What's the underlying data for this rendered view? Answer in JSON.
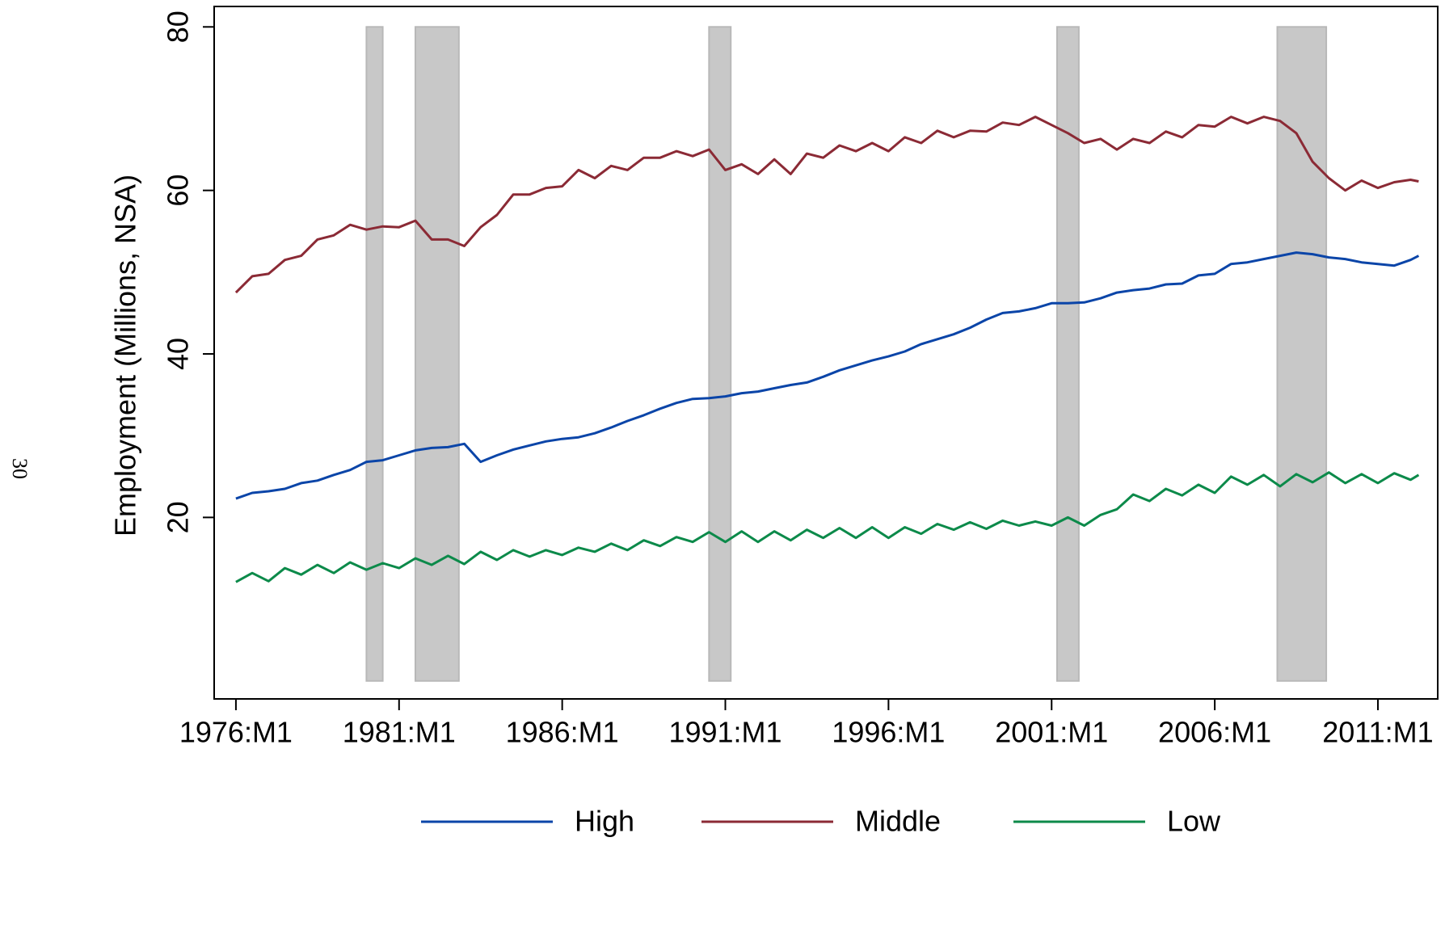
{
  "page_number": "30",
  "chart_data": {
    "type": "line",
    "y_label": "Employment (Millions, NSA)",
    "x": [
      "1976:M1",
      "1976:M7",
      "1977:M1",
      "1977:M7",
      "1978:M1",
      "1978:M7",
      "1979:M1",
      "1979:M7",
      "1980:M1",
      "1980:M7",
      "1981:M1",
      "1981:M7",
      "1982:M1",
      "1982:M7",
      "1983:M1",
      "1983:M7",
      "1984:M1",
      "1984:M7",
      "1985:M1",
      "1985:M7",
      "1986:M1",
      "1986:M7",
      "1987:M1",
      "1987:M7",
      "1988:M1",
      "1988:M7",
      "1989:M1",
      "1989:M7",
      "1990:M1",
      "1990:M7",
      "1991:M1",
      "1991:M7",
      "1992:M1",
      "1992:M7",
      "1993:M1",
      "1993:M7",
      "1994:M1",
      "1994:M7",
      "1995:M1",
      "1995:M7",
      "1996:M1",
      "1996:M7",
      "1997:M1",
      "1997:M7",
      "1998:M1",
      "1998:M7",
      "1999:M1",
      "1999:M7",
      "2000:M1",
      "2000:M7",
      "2001:M1",
      "2001:M7",
      "2002:M1",
      "2002:M7",
      "2003:M1",
      "2003:M7",
      "2004:M1",
      "2004:M7",
      "2005:M1",
      "2005:M7",
      "2006:M1",
      "2006:M7",
      "2007:M1",
      "2007:M7",
      "2008:M1",
      "2008:M7",
      "2009:M1",
      "2009:M7",
      "2010:M1",
      "2010:M7",
      "2011:M1",
      "2011:M7",
      "2012:M1",
      "2012:M4"
    ],
    "series": [
      {
        "name": "High",
        "color": "#0b45a8",
        "values": [
          22.3,
          23.0,
          23.2,
          23.5,
          24.2,
          24.5,
          25.2,
          25.8,
          26.8,
          27.0,
          27.6,
          28.2,
          28.5,
          28.6,
          29.0,
          26.8,
          27.6,
          28.3,
          28.8,
          29.3,
          29.6,
          29.8,
          30.3,
          31.0,
          31.8,
          32.5,
          33.3,
          34.0,
          34.5,
          34.6,
          34.8,
          35.2,
          35.4,
          35.8,
          36.2,
          36.5,
          37.2,
          38.0,
          38.6,
          39.2,
          39.7,
          40.3,
          41.2,
          41.8,
          42.4,
          43.2,
          44.2,
          45.0,
          45.2,
          45.6,
          46.2,
          46.2,
          46.3,
          46.8,
          47.5,
          47.8,
          48.0,
          48.5,
          48.6,
          49.6,
          49.8,
          51.0,
          51.2,
          51.6,
          52.0,
          52.4,
          52.2,
          51.8,
          51.6,
          51.2,
          51.0,
          50.8,
          51.5,
          52.0
        ]
      },
      {
        "name": "Middle",
        "color": "#8b2a35",
        "values": [
          47.5,
          49.5,
          49.8,
          51.5,
          52.0,
          54.0,
          54.5,
          55.8,
          55.2,
          55.6,
          55.5,
          56.3,
          54.0,
          54.0,
          53.2,
          55.5,
          57.0,
          59.5,
          59.5,
          60.3,
          60.5,
          62.5,
          61.5,
          63.0,
          62.5,
          64.0,
          64.0,
          64.8,
          64.2,
          65.0,
          62.5,
          63.2,
          62.0,
          63.8,
          62.0,
          64.5,
          64.0,
          65.5,
          64.8,
          65.8,
          64.8,
          66.5,
          65.8,
          67.3,
          66.5,
          67.3,
          67.2,
          68.3,
          68.0,
          69.0,
          68.0,
          67.0,
          65.8,
          66.3,
          65.0,
          66.3,
          65.8,
          67.2,
          66.5,
          68.0,
          67.8,
          69.0,
          68.2,
          69.0,
          68.5,
          67.0,
          63.5,
          61.5,
          60.0,
          61.2,
          60.3,
          61.0,
          61.3,
          61.1
        ]
      },
      {
        "name": "Low",
        "color": "#0c8a4a",
        "values": [
          12.1,
          13.2,
          12.2,
          13.8,
          13.0,
          14.2,
          13.2,
          14.5,
          13.6,
          14.4,
          13.8,
          15.0,
          14.2,
          15.3,
          14.3,
          15.8,
          14.8,
          16.0,
          15.2,
          16.0,
          15.4,
          16.3,
          15.8,
          16.8,
          16.0,
          17.2,
          16.5,
          17.6,
          17.0,
          18.2,
          17.0,
          18.3,
          17.0,
          18.3,
          17.2,
          18.5,
          17.5,
          18.7,
          17.5,
          18.8,
          17.5,
          18.8,
          18.0,
          19.2,
          18.5,
          19.4,
          18.6,
          19.6,
          19.0,
          19.5,
          19.0,
          20.0,
          19.0,
          20.3,
          21.0,
          22.8,
          22.0,
          23.5,
          22.7,
          24.0,
          23.0,
          25.0,
          24.0,
          25.2,
          23.8,
          25.3,
          24.3,
          25.5,
          24.2,
          25.3,
          24.2,
          25.4,
          24.6,
          25.2
        ]
      }
    ],
    "shaded_periods": [
      {
        "start": "1980:M1",
        "end": "1980:M7"
      },
      {
        "start": "1981:M7",
        "end": "1982:M11"
      },
      {
        "start": "1990:M7",
        "end": "1991:M3"
      },
      {
        "start": "2001:M3",
        "end": "2001:M11"
      },
      {
        "start": "2007:M12",
        "end": "2009:M6"
      }
    ],
    "shade_color": "#c8c8c8",
    "xlim": [
      "1975:M5",
      "2012:M11"
    ],
    "xticks": [
      "1976:M1",
      "1981:M1",
      "1986:M1",
      "1991:M1",
      "1996:M1",
      "2001:M1",
      "2006:M1",
      "2011:M1"
    ],
    "ylim": [
      -2.2,
      82.5
    ],
    "yticks": [
      20,
      40,
      60,
      80
    ],
    "grid": false,
    "legend": "bottom"
  }
}
